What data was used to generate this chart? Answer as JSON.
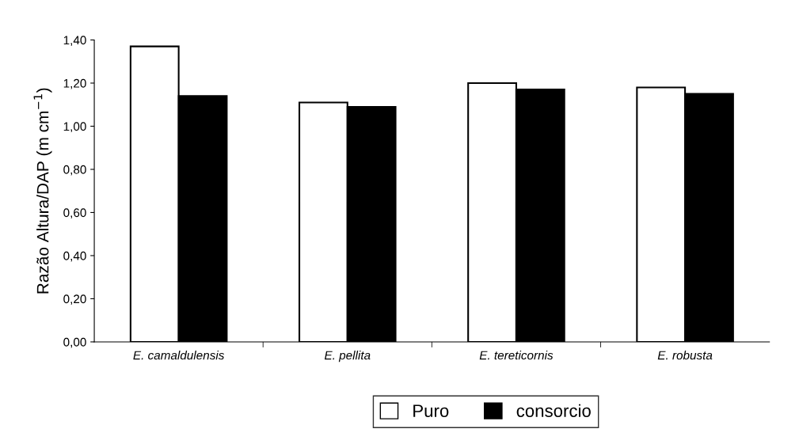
{
  "chart_data": {
    "type": "bar",
    "ylabel": "Razão Altura/DAP (m cm$^{−1}$)",
    "categories": [
      "E. camaldulensis",
      "E. pellita",
      "E. tereticornis",
      "E. robusta"
    ],
    "series": [
      {
        "name": "Puro",
        "color": "#ffffff",
        "values": [
          1.37,
          1.11,
          1.2,
          1.18
        ]
      },
      {
        "name": "consorcio",
        "color": "#000000",
        "values": [
          1.14,
          1.09,
          1.17,
          1.15
        ]
      }
    ],
    "ylim": [
      0,
      1.4
    ],
    "yticks": [
      {
        "value": 0,
        "label": "0,00"
      },
      {
        "value": 0.2,
        "label": "0,20"
      },
      {
        "value": 0.4,
        "label": "0,40"
      },
      {
        "value": 0.6,
        "label": "0,60"
      },
      {
        "value": 0.8,
        "label": "0,80"
      },
      {
        "value": 1.0,
        "label": "1,00"
      },
      {
        "value": 1.2,
        "label": "1,20"
      },
      {
        "value": 1.4,
        "label": "1,40"
      }
    ],
    "grid": false,
    "legend": "bottom"
  }
}
